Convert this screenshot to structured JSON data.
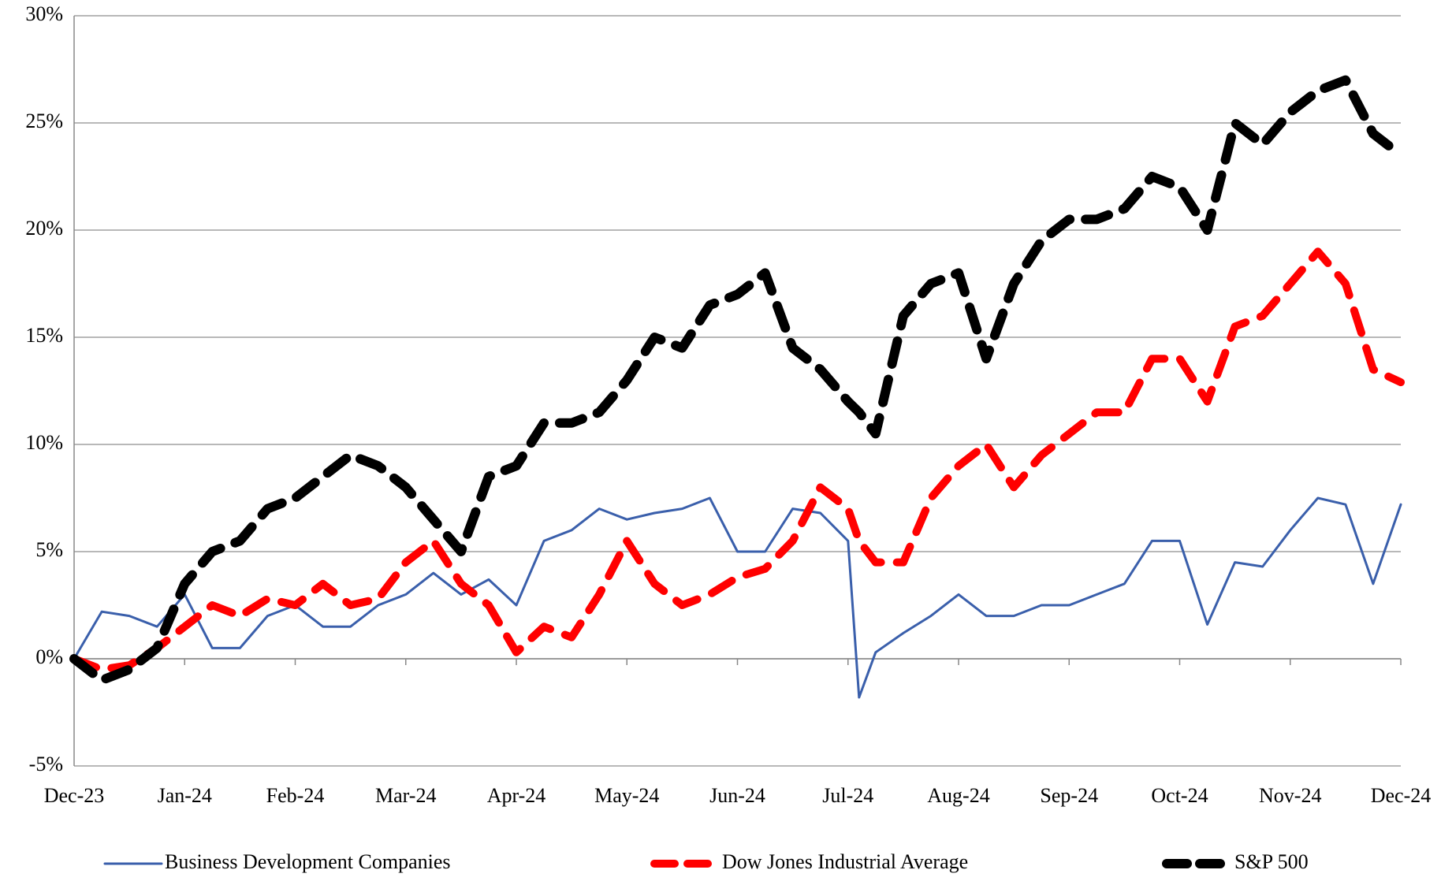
{
  "chart_data": {
    "type": "line",
    "x": [
      0,
      0.25,
      0.5,
      0.75,
      1,
      1.25,
      1.5,
      1.75,
      2,
      2.25,
      2.5,
      2.75,
      3,
      3.25,
      3.5,
      3.75,
      4,
      4.25,
      4.5,
      4.75,
      5,
      5.25,
      5.5,
      5.75,
      6,
      6.25,
      6.5,
      6.75,
      7,
      7.1,
      7.25,
      7.5,
      7.75,
      8,
      8.25,
      8.5,
      8.75,
      9,
      9.25,
      9.5,
      9.75,
      10,
      10.25,
      10.5,
      10.75,
      11,
      11.25,
      11.5,
      11.75,
      12
    ],
    "xlim": [
      0,
      12
    ],
    "xticks": [
      {
        "value": 0,
        "label": "Dec-23"
      },
      {
        "value": 1,
        "label": "Jan-24"
      },
      {
        "value": 2,
        "label": "Feb-24"
      },
      {
        "value": 3,
        "label": "Mar-24"
      },
      {
        "value": 4,
        "label": "Apr-24"
      },
      {
        "value": 5,
        "label": "May-24"
      },
      {
        "value": 6,
        "label": "Jun-24"
      },
      {
        "value": 7,
        "label": "Jul-24"
      },
      {
        "value": 8,
        "label": "Aug-24"
      },
      {
        "value": 9,
        "label": "Sep-24"
      },
      {
        "value": 10,
        "label": "Oct-24"
      },
      {
        "value": 11,
        "label": "Nov-24"
      },
      {
        "value": 12,
        "label": "Dec-24"
      }
    ],
    "ylim": [
      -5,
      30
    ],
    "yticks": [
      {
        "value": -5,
        "label": "-5%"
      },
      {
        "value": 0,
        "label": "0%"
      },
      {
        "value": 5,
        "label": "5%"
      },
      {
        "value": 10,
        "label": "10%"
      },
      {
        "value": 15,
        "label": "15%"
      },
      {
        "value": 20,
        "label": "20%"
      },
      {
        "value": 25,
        "label": "25%"
      },
      {
        "value": 30,
        "label": "30%"
      }
    ],
    "grid": true,
    "legend": "bottom",
    "series": [
      {
        "name": "Business Development Companies",
        "color": "#3a5fab",
        "style": "solid",
        "values": [
          0,
          2.2,
          2.0,
          1.5,
          3.0,
          0.5,
          0.5,
          2.0,
          2.5,
          1.5,
          1.5,
          2.5,
          3.0,
          4.0,
          3.0,
          3.7,
          2.5,
          5.5,
          6.0,
          7.0,
          6.5,
          6.8,
          7.0,
          7.5,
          5.0,
          5.0,
          7.0,
          6.8,
          5.5,
          -1.8,
          0.3,
          1.2,
          2.0,
          3.0,
          2.0,
          2.0,
          2.5,
          2.5,
          3.0,
          3.5,
          5.5,
          5.5,
          1.6,
          4.5,
          4.3,
          6.0,
          7.5,
          7.2,
          3.5,
          7.2
        ]
      },
      {
        "name": "Dow Jones Industrial Average",
        "color": "#ff0000",
        "style": "dashed",
        "values": [
          0,
          -0.5,
          -0.3,
          0.5,
          1.5,
          2.5,
          2.0,
          2.8,
          2.5,
          3.5,
          2.5,
          2.8,
          4.5,
          5.5,
          3.5,
          2.5,
          0.3,
          1.5,
          1.0,
          3.0,
          5.5,
          3.5,
          2.5,
          3.0,
          3.8,
          4.2,
          5.5,
          8.0,
          7.0,
          5.5,
          4.5,
          4.5,
          7.5,
          9.0,
          10.0,
          8.0,
          9.5,
          10.5,
          11.5,
          11.5,
          14.0,
          14.0,
          12.0,
          15.5,
          16.0,
          17.5,
          19.0,
          17.5,
          13.5,
          12.9
        ]
      },
      {
        "name": "S&P 500",
        "color": "#000000",
        "style": "dashed",
        "values": [
          0,
          -1.0,
          -0.5,
          0.5,
          3.5,
          5.0,
          5.5,
          7.0,
          7.5,
          8.5,
          9.5,
          9.0,
          8.0,
          6.5,
          5.0,
          8.5,
          9.0,
          11.0,
          11.0,
          11.5,
          13.0,
          15.0,
          14.5,
          16.5,
          17.0,
          18.0,
          14.5,
          13.5,
          12.0,
          11.5,
          10.5,
          16.0,
          17.5,
          18.0,
          14.0,
          17.5,
          19.5,
          20.5,
          20.5,
          21.0,
          22.5,
          22.0,
          20.0,
          25.0,
          24.0,
          25.5,
          26.5,
          27.0,
          24.5,
          23.5
        ]
      }
    ]
  }
}
